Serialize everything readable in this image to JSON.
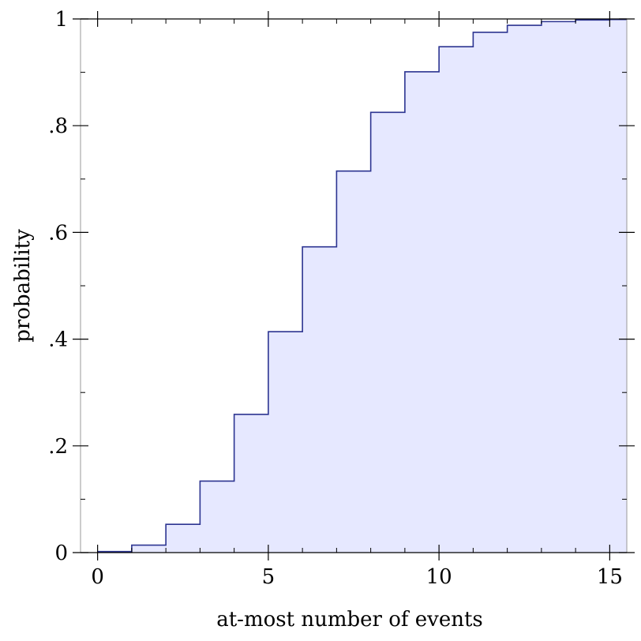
{
  "chart_data": {
    "type": "area",
    "step": "post",
    "title": "",
    "xlabel": "at-most number of events",
    "ylabel": "probability",
    "xlim": [
      -0.5,
      15.5
    ],
    "ylim": [
      0,
      1
    ],
    "x_ticks": [
      {
        "value": 0,
        "label": "0"
      },
      {
        "value": 5,
        "label": "5"
      },
      {
        "value": 10,
        "label": "10"
      },
      {
        "value": 15,
        "label": "15"
      }
    ],
    "y_ticks": [
      {
        "value": 0,
        "label": "0"
      },
      {
        "value": 0.2,
        "label": ".2"
      },
      {
        "value": 0.4,
        "label": ".4"
      },
      {
        "value": 0.6,
        "label": ".6"
      },
      {
        "value": 0.8,
        "label": ".8"
      },
      {
        "value": 1,
        "label": "1"
      }
    ],
    "x_minor_step": 1,
    "y_minor_step": 0.1,
    "grid": false,
    "series": [
      {
        "x": [
          0,
          1,
          2,
          3,
          4,
          5,
          6,
          7,
          8,
          9,
          10,
          11,
          12,
          13,
          14,
          15
        ],
        "values": [
          0.002,
          0.014,
          0.053,
          0.134,
          0.259,
          0.414,
          0.573,
          0.715,
          0.825,
          0.901,
          0.948,
          0.975,
          0.988,
          0.995,
          0.998,
          0.999
        ]
      }
    ],
    "colors": {
      "line": "#2c3491",
      "fill": "#e6e8ff",
      "axis": "#000000",
      "frame": "#999999"
    }
  }
}
